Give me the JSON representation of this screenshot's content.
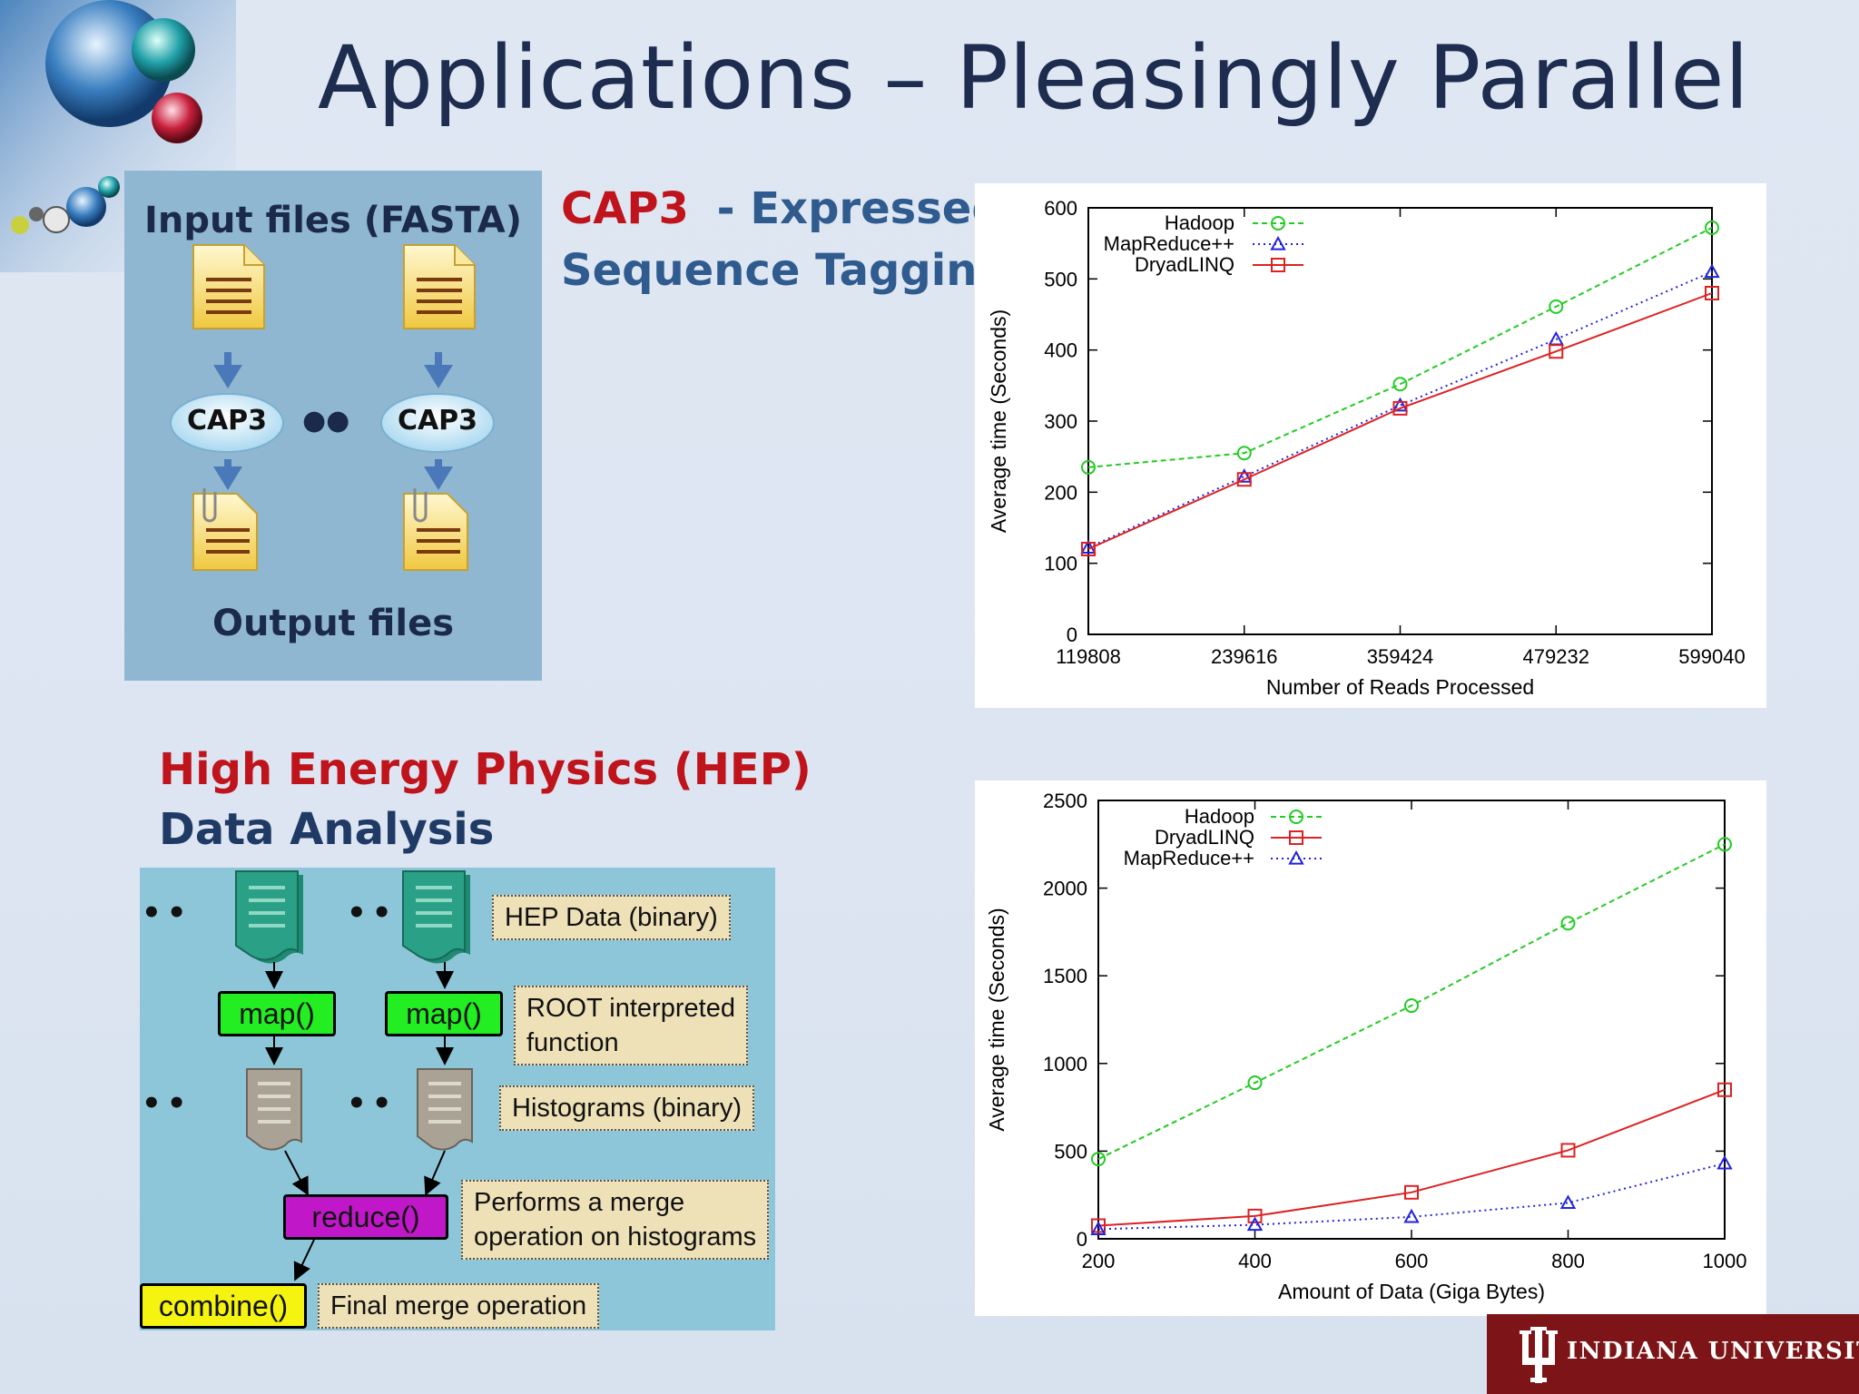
{
  "slide": {
    "title": "Applications – Pleasingly Parallel",
    "brand": "INDIANA UNIVERSITY",
    "colors": {
      "accent_red": "#c0141c",
      "accent_blue": "#2f5b8f",
      "iu_crimson": "#7d1417"
    }
  },
  "cap3_diagram": {
    "input_label": "Input files (FASTA)",
    "output_label": "Output files",
    "node_label": "CAP3",
    "dots": "●●"
  },
  "cap3_heading": {
    "name": "CAP3",
    "separator": "-",
    "line1_rest": "Expressed",
    "line2": "Sequence Tagging"
  },
  "hep_heading": {
    "line1": "High Energy Physics (HEP)",
    "line2": "Data Analysis"
  },
  "hep_diagram": {
    "map_label": "map()",
    "reduce_label": "reduce()",
    "combine_label": "combine()",
    "dots": "••",
    "notes": {
      "hep_data": "HEP Data (binary)",
      "root_line1": "ROOT interpreted",
      "root_line2": "function",
      "histograms": "Histograms (binary)",
      "merge_line1": "Performs a merge",
      "merge_line2": "operation on histograms",
      "final_merge": "Final merge operation"
    }
  },
  "chart_data": [
    {
      "type": "line",
      "xlabel": "Number of Reads Processed",
      "ylabel": "Average time (Seconds)",
      "categories": [
        "119808",
        "239616",
        "359424",
        "479232",
        "599040"
      ],
      "ylim": [
        0,
        600
      ],
      "yticks": [
        "0",
        "100",
        "200",
        "300",
        "400",
        "500",
        "600"
      ],
      "legend_position": "top-left",
      "series": [
        {
          "name": "Hadoop",
          "color": "#22cc22",
          "marker": "circle",
          "dash": "dashed",
          "values": [
            235,
            255,
            352,
            461,
            572
          ]
        },
        {
          "name": "MapReduce++",
          "color": "#2222dd",
          "marker": "triangle",
          "dash": "dotted",
          "values": [
            122,
            222,
            322,
            415,
            510
          ]
        },
        {
          "name": "DryadLINQ",
          "color": "#dd2222",
          "marker": "square",
          "dash": "solid",
          "values": [
            120,
            218,
            318,
            398,
            480
          ]
        }
      ]
    },
    {
      "type": "line",
      "xlabel": "Amount of Data (Giga Bytes)",
      "ylabel": "Average time (Seconds)",
      "categories": [
        "200",
        "400",
        "600",
        "800",
        "1000"
      ],
      "ylim": [
        0,
        2500
      ],
      "yticks": [
        "0",
        "500",
        "1000",
        "1500",
        "2000",
        "2500"
      ],
      "legend_position": "top-left",
      "series": [
        {
          "name": "Hadoop",
          "color": "#22cc22",
          "marker": "circle",
          "dash": "dashed",
          "values": [
            455,
            890,
            1330,
            1800,
            2250
          ]
        },
        {
          "name": "DryadLINQ",
          "color": "#dd2222",
          "marker": "square",
          "dash": "solid",
          "values": [
            75,
            130,
            265,
            505,
            850
          ]
        },
        {
          "name": "MapReduce++",
          "color": "#2222dd",
          "marker": "triangle",
          "dash": "dotted",
          "values": [
            55,
            80,
            125,
            205,
            430
          ]
        }
      ]
    }
  ]
}
